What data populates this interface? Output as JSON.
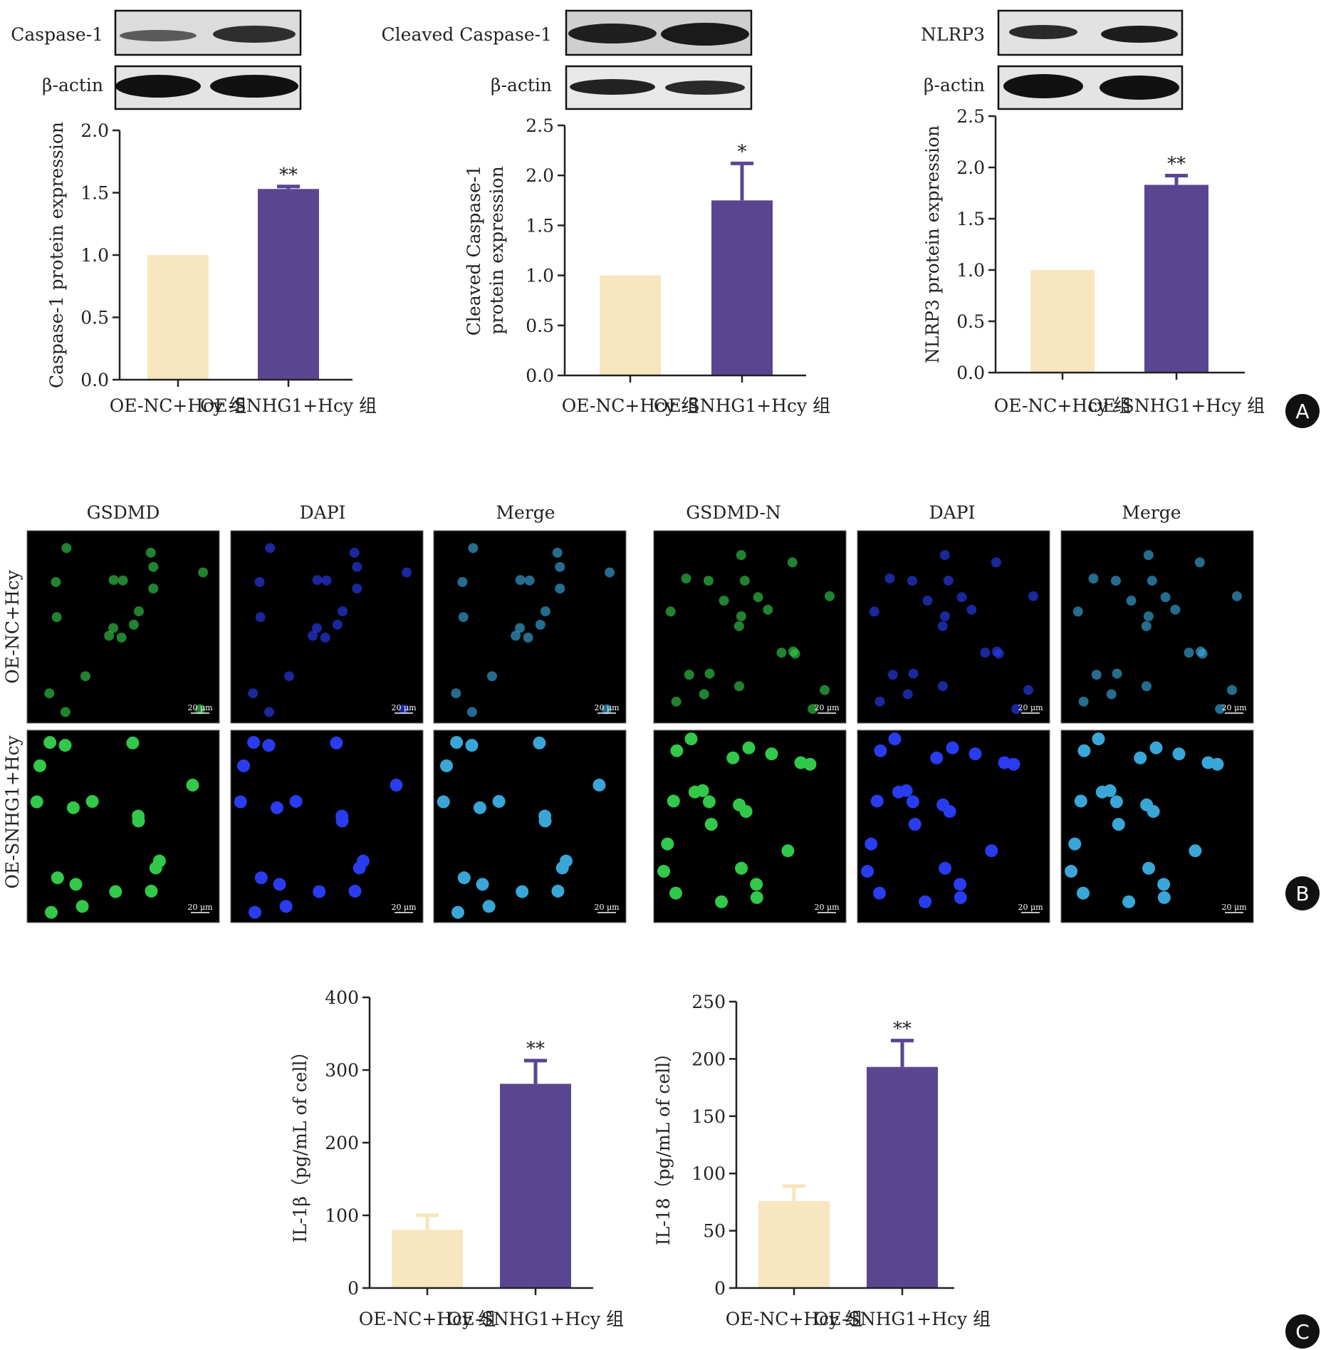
{
  "colors": {
    "control": "#F7E6BE",
    "treatment": "#5A4690",
    "axis": "#222222",
    "gfp": "#32c84a",
    "dapi": "#2a3cf0",
    "merge": "#3aa6d8",
    "badge": "#111111"
  },
  "panel_labels": {
    "A": "A",
    "B": "B",
    "C": "C"
  },
  "groups": [
    "OE-NC+Hcy 组",
    "OE-SNHG1+Hcy 组"
  ],
  "blots": [
    {
      "target": "Caspase-1",
      "loading": "β-actin"
    },
    {
      "target": "Cleaved Caspase-1",
      "loading": "β-actin"
    },
    {
      "target": "NLRP3",
      "loading": "β-actin"
    }
  ],
  "if_panel": {
    "left_headers": [
      "GSDMD",
      "DAPI",
      "Merge"
    ],
    "right_headers": [
      "GSDMD-N",
      "DAPI",
      "Merge"
    ],
    "row_labels": [
      "OE-NC+Hcy",
      "OE-SNHG1+Hcy"
    ],
    "scale_bar": "20 μm"
  },
  "chart_data": [
    {
      "type": "bar",
      "panel": "A",
      "ylabel": [
        "Caspase-1 protein expression"
      ],
      "categories": [
        "OE-NC+Hcy 组",
        "OE-SNHG1+Hcy 组"
      ],
      "values": [
        1.0,
        1.53
      ],
      "errors": [
        0,
        0.02
      ],
      "significance": [
        "",
        "**"
      ],
      "ylim": [
        0,
        2.0
      ],
      "ticks": [
        "0.0",
        "0.5",
        "1.0",
        "1.5",
        "2.0"
      ]
    },
    {
      "type": "bar",
      "panel": "A",
      "ylabel": [
        "Cleaved Caspase-1",
        "protein expression"
      ],
      "categories": [
        "OE-NC+Hcy 组",
        "OE-SNHG1+Hcy 组"
      ],
      "values": [
        1.0,
        1.75
      ],
      "errors": [
        0,
        0.37
      ],
      "significance": [
        "",
        "*"
      ],
      "ylim": [
        0,
        2.5
      ],
      "ticks": [
        "0.0",
        "0.5",
        "1.0",
        "1.5",
        "2.0",
        "2.5"
      ]
    },
    {
      "type": "bar",
      "panel": "A",
      "ylabel": [
        "NLRP3 protein expression"
      ],
      "categories": [
        "OE-NC+Hcy 组",
        "OE-SNHG1+Hcy 组"
      ],
      "values": [
        1.0,
        1.83
      ],
      "errors": [
        0,
        0.09
      ],
      "significance": [
        "",
        "**"
      ],
      "ylim": [
        0,
        2.5
      ],
      "ticks": [
        "0.0",
        "0.5",
        "1.0",
        "1.5",
        "2.0",
        "2.5"
      ]
    },
    {
      "type": "bar",
      "panel": "C",
      "ylabel": [
        "IL-1β（pg/mL of cell）"
      ],
      "categories": [
        "OE-NC+Hcy 组",
        "OE-SNHG1+Hcy 组"
      ],
      "values": [
        80,
        281
      ],
      "errors": [
        20,
        32
      ],
      "significance": [
        "",
        "**"
      ],
      "ylim": [
        0,
        400
      ],
      "ticks": [
        "0",
        "100",
        "200",
        "300",
        "400"
      ]
    },
    {
      "type": "bar",
      "panel": "C",
      "ylabel": [
        "IL-18（pg/mL of cell）"
      ],
      "categories": [
        "OE-NC+Hcy 组",
        "OE-SNHG1+Hcy 组"
      ],
      "values": [
        76,
        193
      ],
      "errors": [
        13,
        23
      ],
      "significance": [
        "",
        "**"
      ],
      "ylim": [
        0,
        250
      ],
      "ticks": [
        "0",
        "50",
        "100",
        "150",
        "200",
        "250"
      ]
    }
  ]
}
